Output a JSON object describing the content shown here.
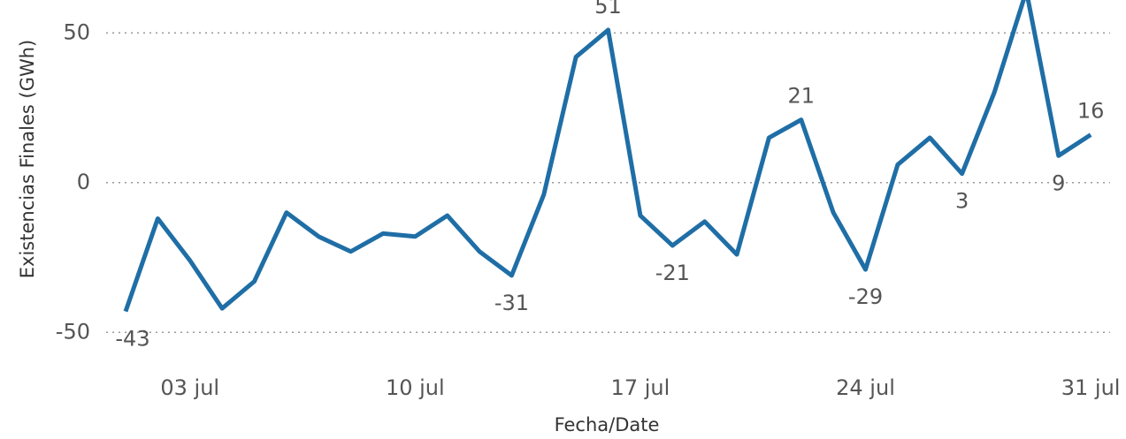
{
  "chart_data": {
    "type": "line",
    "y_label": "Existencias Finales (GWh)",
    "x_label": "Fecha/Date",
    "categories": [
      null,
      null,
      "03 jul",
      null,
      null,
      null,
      null,
      null,
      null,
      "10 jul",
      null,
      null,
      null,
      null,
      null,
      null,
      "17 jul",
      null,
      null,
      null,
      null,
      null,
      null,
      "24 jul",
      null,
      null,
      null,
      null,
      null,
      null,
      "31 jul"
    ],
    "series": [
      {
        "color": "#1f6ea6",
        "values": [
          -43,
          -12,
          -26,
          -42,
          -33,
          -10,
          -18,
          -23,
          -17,
          -18,
          -11,
          -23,
          -31,
          -4,
          42,
          51,
          -11,
          -21,
          -13,
          -24,
          15,
          21,
          -10,
          -29,
          6,
          15,
          3,
          30,
          64,
          9,
          16
        ],
        "value_labels": [
          "-43",
          null,
          null,
          null,
          null,
          null,
          null,
          null,
          null,
          null,
          null,
          null,
          "-31",
          null,
          null,
          "51",
          null,
          "-21",
          null,
          null,
          null,
          "21",
          null,
          "-29",
          null,
          null,
          "3",
          null,
          null,
          "9",
          "16"
        ]
      }
    ],
    "ylim": [
      -57,
      61
    ],
    "yticks": [
      -50,
      0,
      50
    ],
    "grid": true
  }
}
